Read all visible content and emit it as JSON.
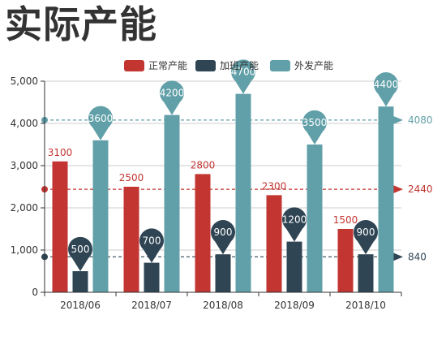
{
  "title": "实际产能",
  "chart_data": {
    "type": "bar",
    "categories": [
      "2018/06",
      "2018/07",
      "2018/08",
      "2018/09",
      "2018/10"
    ],
    "series": [
      {
        "name": "正常产能",
        "values": [
          3100,
          2500,
          2800,
          2300,
          1500
        ],
        "color": "#c23531",
        "label_style": "top"
      },
      {
        "name": "加班产能",
        "values": [
          500,
          700,
          900,
          1200,
          900
        ],
        "color": "#2f4554",
        "label_style": "pin"
      },
      {
        "name": "外发产能",
        "values": [
          3600,
          4200,
          4700,
          3500,
          4400
        ],
        "color": "#61a0a8",
        "label_style": "pin"
      }
    ],
    "ylim": [
      0,
      5000
    ],
    "yticks": [
      "0",
      "1,000",
      "2,000",
      "3,000",
      "4,000",
      "5,000"
    ],
    "average_lines": [
      {
        "series": "外发产能",
        "value": 4080,
        "label": "4080",
        "color": "#61a0a8"
      },
      {
        "series": "正常产能",
        "value": 2440,
        "label": "2440",
        "color": "#c23531"
      },
      {
        "series": "加班产能",
        "value": 840,
        "label": "840",
        "color": "#2f4554"
      }
    ],
    "legend_position": "top-center",
    "grid": true,
    "xlabel": "",
    "ylabel": ""
  }
}
